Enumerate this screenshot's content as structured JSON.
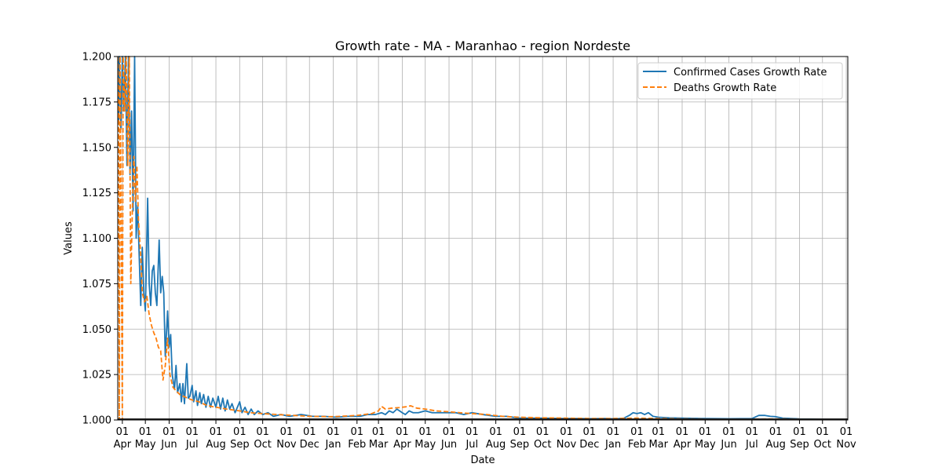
{
  "chart_data": {
    "type": "line",
    "title": "Growth rate - MA - Maranhao - region Nordeste",
    "xlabel": "Date",
    "ylabel": "Values",
    "ylim": [
      1.0,
      1.2
    ],
    "xlim": [
      "2020-03-26",
      "2022-11-03"
    ],
    "y_ticks": [
      "1.000",
      "1.025",
      "1.050",
      "1.075",
      "1.100",
      "1.125",
      "1.150",
      "1.175",
      "1.200"
    ],
    "x_ticks": [
      {
        "date": "2020-04-01",
        "day": "01",
        "month": "Apr"
      },
      {
        "date": "2020-05-01",
        "day": "01",
        "month": "May"
      },
      {
        "date": "2020-06-01",
        "day": "01",
        "month": "Jun"
      },
      {
        "date": "2020-07-01",
        "day": "01",
        "month": "Jul"
      },
      {
        "date": "2020-08-01",
        "day": "01",
        "month": "Aug"
      },
      {
        "date": "2020-09-01",
        "day": "01",
        "month": "Sep"
      },
      {
        "date": "2020-10-01",
        "day": "01",
        "month": "Oct"
      },
      {
        "date": "2020-11-01",
        "day": "01",
        "month": "Nov"
      },
      {
        "date": "2020-12-01",
        "day": "01",
        "month": "Dec"
      },
      {
        "date": "2021-01-01",
        "day": "01",
        "month": "Jan"
      },
      {
        "date": "2021-02-01",
        "day": "01",
        "month": "Feb"
      },
      {
        "date": "2021-03-01",
        "day": "01",
        "month": "Mar"
      },
      {
        "date": "2021-04-01",
        "day": "01",
        "month": "Apr"
      },
      {
        "date": "2021-05-01",
        "day": "01",
        "month": "May"
      },
      {
        "date": "2021-06-01",
        "day": "01",
        "month": "Jun"
      },
      {
        "date": "2021-07-01",
        "day": "01",
        "month": "Jul"
      },
      {
        "date": "2021-08-01",
        "day": "01",
        "month": "Aug"
      },
      {
        "date": "2021-09-01",
        "day": "01",
        "month": "Sep"
      },
      {
        "date": "2021-10-01",
        "day": "01",
        "month": "Oct"
      },
      {
        "date": "2021-11-01",
        "day": "01",
        "month": "Nov"
      },
      {
        "date": "2021-12-01",
        "day": "01",
        "month": "Dec"
      },
      {
        "date": "2022-01-01",
        "day": "01",
        "month": "Jan"
      },
      {
        "date": "2022-02-01",
        "day": "01",
        "month": "Feb"
      },
      {
        "date": "2022-03-01",
        "day": "01",
        "month": "Mar"
      },
      {
        "date": "2022-04-01",
        "day": "01",
        "month": "Apr"
      },
      {
        "date": "2022-05-01",
        "day": "01",
        "month": "May"
      },
      {
        "date": "2022-06-01",
        "day": "01",
        "month": "Jun"
      },
      {
        "date": "2022-07-01",
        "day": "01",
        "month": "Jul"
      },
      {
        "date": "2022-08-01",
        "day": "01",
        "month": "Aug"
      },
      {
        "date": "2022-09-01",
        "day": "01",
        "month": "Sep"
      },
      {
        "date": "2022-10-01",
        "day": "01",
        "month": "Oct"
      },
      {
        "date": "2022-11-01",
        "day": "01",
        "month": "Nov"
      }
    ],
    "grid": true,
    "legend": "top-right",
    "series": [
      {
        "name": "Confirmed Cases Growth Rate",
        "color": "#1f77b4",
        "style": "solid",
        "points": [
          [
            "2020-03-26",
            1.2
          ],
          [
            "2020-03-27",
            1.165
          ],
          [
            "2020-03-28",
            1.2
          ],
          [
            "2020-03-30",
            1.16
          ],
          [
            "2020-04-01",
            1.2
          ],
          [
            "2020-04-03",
            1.17
          ],
          [
            "2020-04-05",
            1.2
          ],
          [
            "2020-04-07",
            1.14
          ],
          [
            "2020-04-09",
            1.2
          ],
          [
            "2020-04-11",
            1.135
          ],
          [
            "2020-04-13",
            1.17
          ],
          [
            "2020-04-15",
            1.115
          ],
          [
            "2020-04-17",
            1.2
          ],
          [
            "2020-04-19",
            1.1
          ],
          [
            "2020-04-21",
            1.118
          ],
          [
            "2020-04-23",
            1.09
          ],
          [
            "2020-04-25",
            1.063
          ],
          [
            "2020-04-27",
            1.095
          ],
          [
            "2020-04-29",
            1.07
          ],
          [
            "2020-05-01",
            1.06
          ],
          [
            "2020-05-04",
            1.122
          ],
          [
            "2020-05-06",
            1.075
          ],
          [
            "2020-05-08",
            1.063
          ],
          [
            "2020-05-10",
            1.082
          ],
          [
            "2020-05-12",
            1.085
          ],
          [
            "2020-05-14",
            1.07
          ],
          [
            "2020-05-16",
            1.063
          ],
          [
            "2020-05-19",
            1.099
          ],
          [
            "2020-05-21",
            1.07
          ],
          [
            "2020-05-23",
            1.079
          ],
          [
            "2020-05-25",
            1.07
          ],
          [
            "2020-05-27",
            1.035
          ],
          [
            "2020-05-30",
            1.06
          ],
          [
            "2020-06-01",
            1.04
          ],
          [
            "2020-06-03",
            1.047
          ],
          [
            "2020-06-05",
            1.025
          ],
          [
            "2020-06-08",
            1.017
          ],
          [
            "2020-06-10",
            1.03
          ],
          [
            "2020-06-12",
            1.015
          ],
          [
            "2020-06-15",
            1.02
          ],
          [
            "2020-06-17",
            1.01
          ],
          [
            "2020-06-19",
            1.02
          ],
          [
            "2020-06-21",
            1.009
          ],
          [
            "2020-06-24",
            1.031
          ],
          [
            "2020-06-26",
            1.012
          ],
          [
            "2020-06-28",
            1.013
          ],
          [
            "2020-07-01",
            1.019
          ],
          [
            "2020-07-03",
            1.01
          ],
          [
            "2020-07-06",
            1.016
          ],
          [
            "2020-07-08",
            1.008
          ],
          [
            "2020-07-11",
            1.015
          ],
          [
            "2020-07-13",
            1.009
          ],
          [
            "2020-07-16",
            1.014
          ],
          [
            "2020-07-19",
            1.007
          ],
          [
            "2020-07-22",
            1.013
          ],
          [
            "2020-07-25",
            1.007
          ],
          [
            "2020-07-28",
            1.012
          ],
          [
            "2020-08-01",
            1.007
          ],
          [
            "2020-08-04",
            1.013
          ],
          [
            "2020-08-07",
            1.006
          ],
          [
            "2020-08-10",
            1.012
          ],
          [
            "2020-08-13",
            1.005
          ],
          [
            "2020-08-16",
            1.011
          ],
          [
            "2020-08-19",
            1.006
          ],
          [
            "2020-08-22",
            1.009
          ],
          [
            "2020-08-26",
            1.004
          ],
          [
            "2020-09-01",
            1.01
          ],
          [
            "2020-09-04",
            1.004
          ],
          [
            "2020-09-08",
            1.007
          ],
          [
            "2020-09-12",
            1.003
          ],
          [
            "2020-09-16",
            1.006
          ],
          [
            "2020-09-20",
            1.003
          ],
          [
            "2020-09-25",
            1.005
          ],
          [
            "2020-10-01",
            1.003
          ],
          [
            "2020-10-08",
            1.004
          ],
          [
            "2020-10-15",
            1.002
          ],
          [
            "2020-10-25",
            1.003
          ],
          [
            "2020-11-05",
            1.002
          ],
          [
            "2020-11-20",
            1.003
          ],
          [
            "2020-12-05",
            1.002
          ],
          [
            "2020-12-20",
            1.002
          ],
          [
            "2021-01-05",
            1.0015
          ],
          [
            "2021-01-20",
            1.002
          ],
          [
            "2021-02-05",
            1.002
          ],
          [
            "2021-02-15",
            1.003
          ],
          [
            "2021-02-25",
            1.003
          ],
          [
            "2021-03-05",
            1.004
          ],
          [
            "2021-03-10",
            1.003
          ],
          [
            "2021-03-15",
            1.005
          ],
          [
            "2021-03-20",
            1.004
          ],
          [
            "2021-03-25",
            1.006
          ],
          [
            "2021-04-01",
            1.004
          ],
          [
            "2021-04-05",
            1.003
          ],
          [
            "2021-04-10",
            1.005
          ],
          [
            "2021-04-15",
            1.004
          ],
          [
            "2021-04-22",
            1.004
          ],
          [
            "2021-05-01",
            1.005
          ],
          [
            "2021-05-10",
            1.004
          ],
          [
            "2021-05-20",
            1.004
          ],
          [
            "2021-06-01",
            1.004
          ],
          [
            "2021-06-10",
            1.004
          ],
          [
            "2021-06-20",
            1.003
          ],
          [
            "2021-07-01",
            1.004
          ],
          [
            "2021-07-15",
            1.003
          ],
          [
            "2021-08-01",
            1.002
          ],
          [
            "2021-08-15",
            1.002
          ],
          [
            "2021-09-01",
            1.001
          ],
          [
            "2021-09-20",
            1.001
          ],
          [
            "2021-10-05",
            1.001
          ],
          [
            "2021-10-25",
            1.0008
          ],
          [
            "2021-11-10",
            1.0008
          ],
          [
            "2021-12-01",
            1.0007
          ],
          [
            "2021-12-20",
            1.0008
          ],
          [
            "2022-01-05",
            1.0006
          ],
          [
            "2022-01-15",
            1.001
          ],
          [
            "2022-01-22",
            1.0025
          ],
          [
            "2022-01-27",
            1.004
          ],
          [
            "2022-02-01",
            1.0035
          ],
          [
            "2022-02-06",
            1.004
          ],
          [
            "2022-02-11",
            1.003
          ],
          [
            "2022-02-16",
            1.004
          ],
          [
            "2022-02-22",
            1.002
          ],
          [
            "2022-03-01",
            1.0015
          ],
          [
            "2022-03-15",
            1.0012
          ],
          [
            "2022-04-01",
            1.001
          ],
          [
            "2022-05-01",
            1.0008
          ],
          [
            "2022-06-01",
            1.0007
          ],
          [
            "2022-07-01",
            1.0008
          ],
          [
            "2022-07-10",
            1.0025
          ],
          [
            "2022-07-18",
            1.0025
          ],
          [
            "2022-07-25",
            1.002
          ],
          [
            "2022-08-01",
            1.0018
          ],
          [
            "2022-08-10",
            1.001
          ],
          [
            "2022-09-01",
            1.0006
          ],
          [
            "2022-10-01",
            1.0005
          ],
          [
            "2022-11-03",
            1.0004
          ]
        ]
      },
      {
        "name": "Deaths Growth Rate",
        "color": "#ff7f0e",
        "style": "dashed",
        "points": [
          [
            "2020-03-26",
            1.2
          ],
          [
            "2020-03-27",
            1.18
          ],
          [
            "2020-03-28",
            1.0
          ],
          [
            "2020-03-29",
            1.2
          ],
          [
            "2020-03-30",
            1.14
          ],
          [
            "2020-04-01",
            1.0
          ],
          [
            "2020-04-02",
            1.2
          ],
          [
            "2020-04-04",
            1.17
          ],
          [
            "2020-04-06",
            1.2
          ],
          [
            "2020-04-08",
            1.14
          ],
          [
            "2020-04-10",
            1.2
          ],
          [
            "2020-04-12",
            1.075
          ],
          [
            "2020-04-14",
            1.115
          ],
          [
            "2020-04-16",
            1.145
          ],
          [
            "2020-04-18",
            1.12
          ],
          [
            "2020-04-20",
            1.14
          ],
          [
            "2020-04-22",
            1.11
          ],
          [
            "2020-04-25",
            1.09
          ],
          [
            "2020-04-27",
            1.07
          ],
          [
            "2020-04-30",
            1.065
          ],
          [
            "2020-05-03",
            1.068
          ],
          [
            "2020-05-06",
            1.058
          ],
          [
            "2020-05-09",
            1.052
          ],
          [
            "2020-05-12",
            1.048
          ],
          [
            "2020-05-15",
            1.045
          ],
          [
            "2020-05-18",
            1.04
          ],
          [
            "2020-05-21",
            1.038
          ],
          [
            "2020-05-24",
            1.022
          ],
          [
            "2020-05-27",
            1.03
          ],
          [
            "2020-05-30",
            1.045
          ],
          [
            "2020-06-02",
            1.025
          ],
          [
            "2020-06-06",
            1.018
          ],
          [
            "2020-06-10",
            1.016
          ],
          [
            "2020-06-15",
            1.014
          ],
          [
            "2020-06-20",
            1.013
          ],
          [
            "2020-06-25",
            1.012
          ],
          [
            "2020-07-01",
            1.011
          ],
          [
            "2020-07-10",
            1.01
          ],
          [
            "2020-07-20",
            1.008
          ],
          [
            "2020-08-01",
            1.007
          ],
          [
            "2020-08-15",
            1.006
          ],
          [
            "2020-09-01",
            1.005
          ],
          [
            "2020-09-15",
            1.004
          ],
          [
            "2020-10-01",
            1.0035
          ],
          [
            "2020-10-20",
            1.003
          ],
          [
            "2020-11-10",
            1.0025
          ],
          [
            "2020-12-01",
            1.002
          ],
          [
            "2021-01-01",
            1.0018
          ],
          [
            "2021-02-01",
            1.0025
          ],
          [
            "2021-02-20",
            1.0035
          ],
          [
            "2021-03-01",
            1.005
          ],
          [
            "2021-03-05",
            1.0075
          ],
          [
            "2021-03-10",
            1.006
          ],
          [
            "2021-03-18",
            1.0065
          ],
          [
            "2021-03-28",
            1.0068
          ],
          [
            "2021-04-05",
            1.0072
          ],
          [
            "2021-04-12",
            1.0078
          ],
          [
            "2021-04-20",
            1.0065
          ],
          [
            "2021-05-01",
            1.006
          ],
          [
            "2021-05-15",
            1.005
          ],
          [
            "2021-06-01",
            1.0045
          ],
          [
            "2021-06-15",
            1.004
          ],
          [
            "2021-07-01",
            1.0035
          ],
          [
            "2021-07-20",
            1.003
          ],
          [
            "2021-08-10",
            1.002
          ],
          [
            "2021-09-01",
            1.0015
          ],
          [
            "2021-10-01",
            1.0012
          ],
          [
            "2021-11-01",
            1.001
          ],
          [
            "2021-12-01",
            1.0008
          ],
          [
            "2022-01-01",
            1.0008
          ],
          [
            "2022-02-01",
            1.001
          ],
          [
            "2022-03-01",
            1.0008
          ],
          [
            "2022-04-01",
            1.0006
          ],
          [
            "2022-05-01",
            1.0005
          ],
          [
            "2022-06-01",
            1.0005
          ],
          [
            "2022-07-01",
            1.0005
          ],
          [
            "2022-08-01",
            1.0006
          ],
          [
            "2022-09-01",
            1.0005
          ],
          [
            "2022-10-01",
            1.0004
          ],
          [
            "2022-11-03",
            1.0004
          ]
        ]
      }
    ]
  }
}
